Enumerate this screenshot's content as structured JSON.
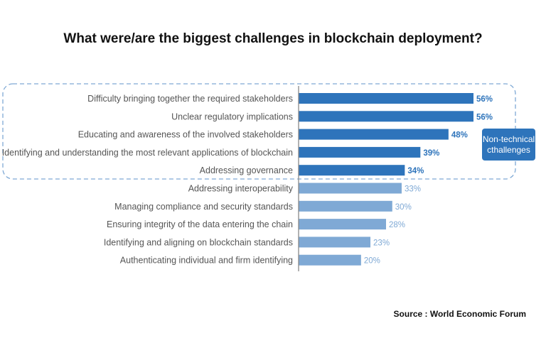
{
  "chart_data": {
    "type": "bar",
    "orientation": "horizontal",
    "title": "What were/are the biggest challenges in blockchain deployment?",
    "categories": [
      "Difficulty bringing together the required stakeholders",
      "Unclear regulatory implications",
      "Educating and awareness of the involved stakeholders",
      "Identifying and understanding the most relevant applications of blockchain",
      "Addressing governance",
      "Addressing interoperability",
      "Managing compliance and security standards",
      "Ensuring integrity of the data entering the chain",
      "Identifying and aligning on blockchain standards",
      "Authenticating individual and firm identifying"
    ],
    "values": [
      56,
      56,
      48,
      39,
      34,
      33,
      30,
      28,
      23,
      20
    ],
    "value_labels": [
      "56%",
      "56%",
      "48%",
      "39%",
      "34%",
      "33%",
      "30%",
      "28%",
      "23%",
      "20%"
    ],
    "group": [
      "non-technical",
      "non-technical",
      "non-technical",
      "non-technical",
      "non-technical",
      "other",
      "other",
      "other",
      "other",
      "other"
    ],
    "colors": {
      "non-technical": "#2e74bb",
      "other": "#7fa9d5",
      "label_dark": "#2e74bb",
      "label_light": "#7fa9d5"
    },
    "annotation": "Non-technical cthallenges",
    "xlim": [
      0,
      60
    ],
    "grid": false
  },
  "source": "Source : World Economic Forum"
}
